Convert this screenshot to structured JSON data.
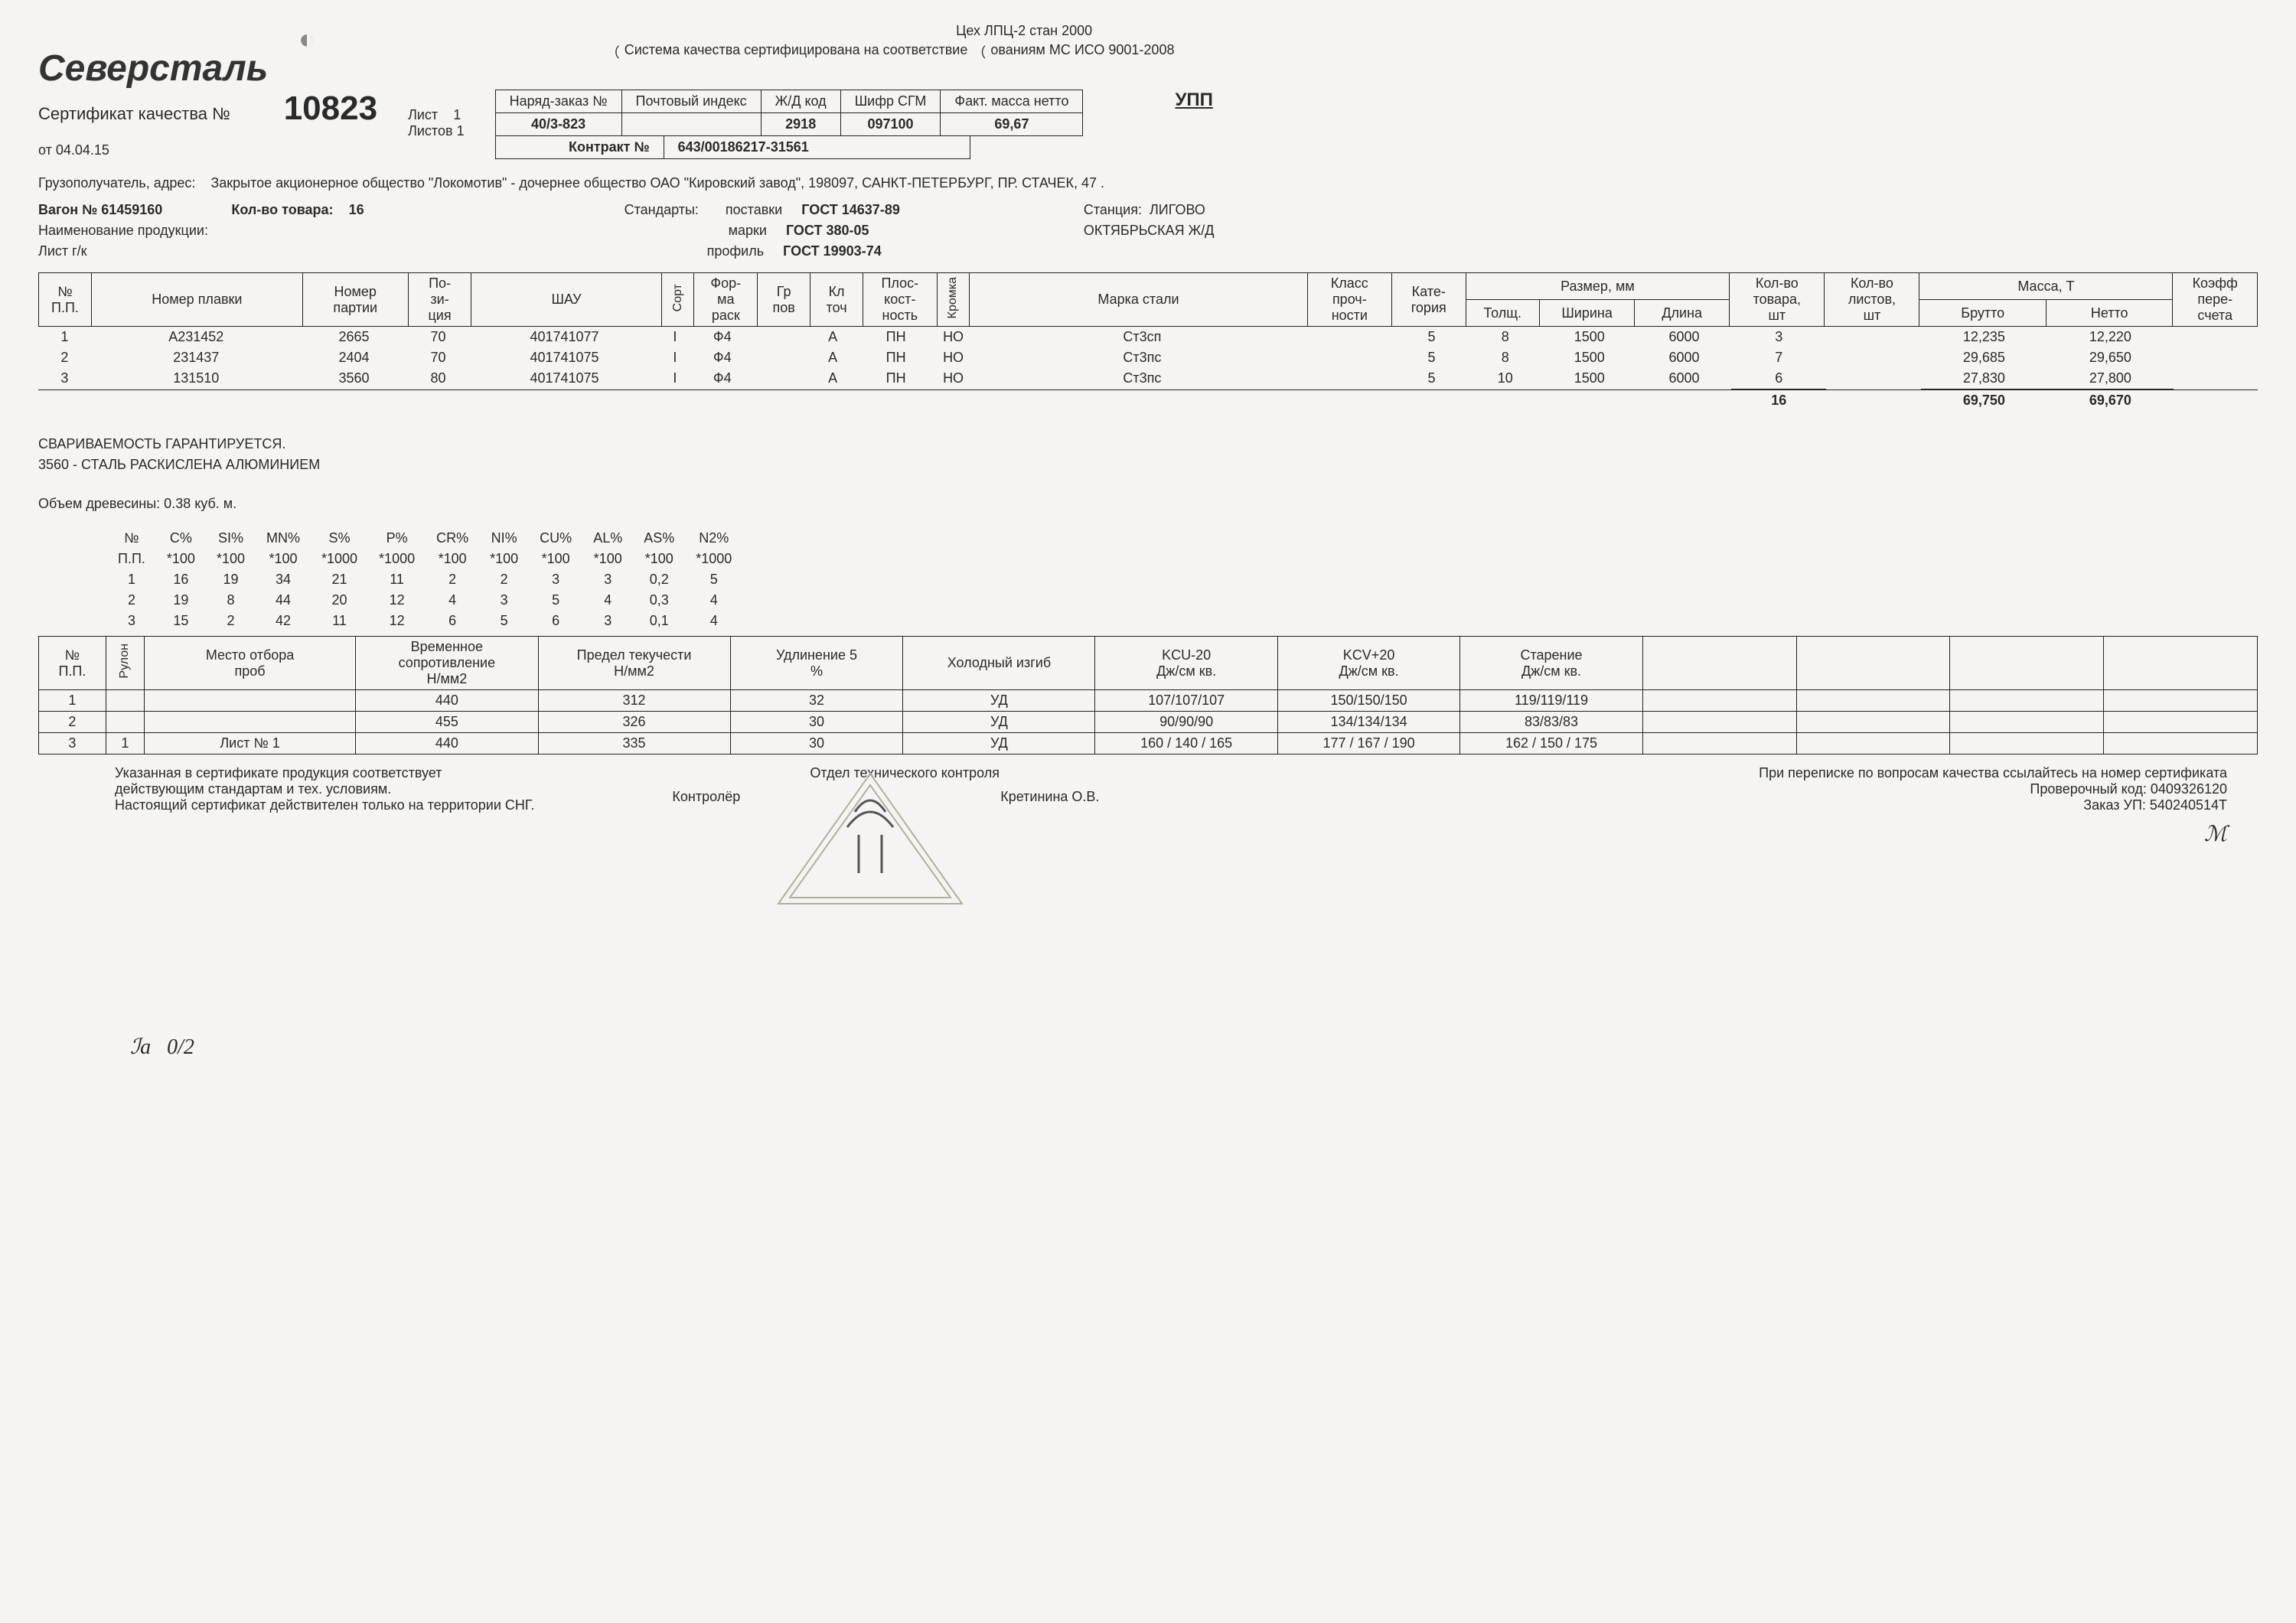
{
  "header": {
    "company": "Северсталь",
    "dept_line": "Цех ЛПЦ-2 стан 2000",
    "iso_line_a": "Система качества сертифицирована на соответствие",
    "iso_line_b": "ованиям МС ИСО 9001-2008",
    "cert_label": "Сертификат качества №",
    "cert_no": "10823",
    "sheet_label": "Лист",
    "sheet": "1",
    "sheets_label": "Листов",
    "sheets": "1",
    "date_label": "от",
    "date": "04.04.15",
    "upp": "УПП"
  },
  "kv": {
    "headers": [
      "Наряд-заказ №",
      "Почтовый индекс",
      "Ж/Д код",
      "Шифр СГМ",
      "Факт. масса нетто"
    ],
    "values": [
      "40/3-823",
      "",
      "2918",
      "097100",
      "69,67"
    ],
    "contract_label": "Контракт №",
    "contract": "643/00186217-31561"
  },
  "info": {
    "consignee_label": "Грузополучатель, адрес:",
    "consignee": "Закрытое акционерное общество \"Локомотив\" - дочернее общество ОАО \"Кировский завод\", 198097, САНКТ-ПЕТЕРБУРГ, ПР. СТАЧЕК, 47 .",
    "wagon_label": "Вагон №",
    "wagon": "61459160",
    "qty_label": "Кол-во товара:",
    "qty": "16",
    "product_label": "Наименование продукции:",
    "product": "Лист г/к",
    "standards_label": "Стандарты:",
    "std_supply_label": "поставки",
    "std_supply": "ГОСТ 14637-89",
    "std_grade_label": "марки",
    "std_grade": "ГОСТ 380-05",
    "std_profile_label": "профиль",
    "std_profile": "ГОСТ 19903-74",
    "station_label": "Станция:",
    "station": "ЛИГОВО",
    "railway": "ОКТЯБРЬСКАЯ Ж/Д"
  },
  "main_headers": {
    "pp": "№\nП.П.",
    "heat": "Номер плавки",
    "batch": "Номер\nпартии",
    "pos": "По-\nзи-\nция",
    "shau": "ШАУ",
    "sort": "Сорт",
    "form": "Фор-\nма\nраск",
    "group": "Гр\nпов",
    "class": "Кл\nточ",
    "flat": "Плос-\nкост-\nность",
    "edge": "Кромка",
    "grade": "Марка стали",
    "strength": "Класс\nпроч-\nности",
    "cat": "Кате-\nгория",
    "size": "Размер, мм",
    "thick": "Толщ.",
    "width": "Ширина",
    "length": "Длина",
    "qty_goods": "Кол-во\nтовара,\nшт",
    "qty_sheets": "Кол-во\nлистов,\nшт",
    "mass": "Масса, Т",
    "gross": "Брутто",
    "net": "Нетто",
    "coef": "Коэфф\nпере-\nсчета"
  },
  "main_rows": [
    {
      "pp": "1",
      "heat": "А231452",
      "batch": "2665",
      "pos": "70",
      "shau": "401741077",
      "sort": "I",
      "form": "Ф4",
      "group": "",
      "class": "А",
      "flat": "ПН",
      "edge": "НО",
      "grade": "Ст3сп",
      "strength": "",
      "cat": "5",
      "thick": "8",
      "width": "1500",
      "length": "6000",
      "qty_goods": "3",
      "qty_sheets": "",
      "gross": "12,235",
      "net": "12,220",
      "coef": ""
    },
    {
      "pp": "2",
      "heat": "231437",
      "batch": "2404",
      "pos": "70",
      "shau": "401741075",
      "sort": "I",
      "form": "Ф4",
      "group": "",
      "class": "А",
      "flat": "ПН",
      "edge": "НО",
      "grade": "Ст3пс",
      "strength": "",
      "cat": "5",
      "thick": "8",
      "width": "1500",
      "length": "6000",
      "qty_goods": "7",
      "qty_sheets": "",
      "gross": "29,685",
      "net": "29,650",
      "coef": ""
    },
    {
      "pp": "3",
      "heat": "131510",
      "batch": "3560",
      "pos": "80",
      "shau": "401741075",
      "sort": "I",
      "form": "Ф4",
      "group": "",
      "class": "А",
      "flat": "ПН",
      "edge": "НО",
      "grade": "Ст3пс",
      "strength": "",
      "cat": "5",
      "thick": "10",
      "width": "1500",
      "length": "6000",
      "qty_goods": "6",
      "qty_sheets": "",
      "gross": "27,830",
      "net": "27,800",
      "coef": ""
    }
  ],
  "main_totals": {
    "qty_goods": "16",
    "gross": "69,750",
    "net": "69,670"
  },
  "notes": {
    "line1": "СВАРИВАЕМОСТЬ ГАРАНТИРУЕТСЯ.",
    "line2": "3560 - СТАЛЬ РАСКИСЛЕНА АЛЮМИНИЕМ",
    "line3": "Объем древесины: 0.38 куб. м."
  },
  "chem": {
    "headers": [
      "№\nП.П.",
      "C%\n*100",
      "SI%\n*100",
      "MN%\n*100",
      "S%\n*1000",
      "P%\n*1000",
      "CR%\n*100",
      "NI%\n*100",
      "CU%\n*100",
      "AL%\n*100",
      "AS%\n*100",
      "N2%\n*1000"
    ],
    "rows": [
      [
        "1",
        "16",
        "19",
        "34",
        "21",
        "11",
        "2",
        "2",
        "3",
        "3",
        "0,2",
        "5"
      ],
      [
        "2",
        "19",
        "8",
        "44",
        "20",
        "12",
        "4",
        "3",
        "5",
        "4",
        "0,3",
        "4"
      ],
      [
        "3",
        "15",
        "2",
        "42",
        "11",
        "12",
        "6",
        "5",
        "6",
        "3",
        "0,1",
        "4"
      ]
    ]
  },
  "mech": {
    "headers": {
      "pp": "№\nП.П.",
      "roll": "Рулон",
      "sample": "Место отбора\nпроб",
      "tensile": "Временное\nсопротивление\nН/мм2",
      "yield": "Предел текучести\nН/мм2",
      "elong": "Удлинение 5\n%",
      "cold": "Холодный изгиб",
      "kcu": "KCU-20\nДж/см кв.",
      "kcv": "KCV+20\nДж/см кв.",
      "aging": "Старение\nДж/см кв."
    },
    "rows": [
      {
        "pp": "1",
        "roll": "",
        "sample": "",
        "tensile": "440",
        "yield": "312",
        "elong": "32",
        "cold": "УД",
        "kcu": "107/107/107",
        "kcv": "150/150/150",
        "aging": "119/119/119"
      },
      {
        "pp": "2",
        "roll": "",
        "sample": "",
        "tensile": "455",
        "yield": "326",
        "elong": "30",
        "cold": "УД",
        "kcu": "90/90/90",
        "kcv": "134/134/134",
        "aging": "83/83/83"
      },
      {
        "pp": "3",
        "roll": "1",
        "sample": "Лист № 1",
        "tensile": "440",
        "yield": "335",
        "elong": "30",
        "cold": "УД",
        "kcu": "160 / 140 / 165",
        "kcv": "177 / 167 / 190",
        "aging": "162 / 150 / 175"
      }
    ]
  },
  "footer": {
    "conformity1": "Указанная в сертификате продукция соответствует",
    "conformity2": "действующим стандартам и тех. условиям.",
    "conformity3": "Настоящий сертификат действителен только на территории СНГ.",
    "dept": "Отдел технического контроля",
    "controller_label": "Контролёр",
    "controller_name": "Кретинина О.В.",
    "contact": "При переписке по вопросам качества ссылайтесь на номер сертификата",
    "verify_label": "Проверочный код:",
    "verify": "0409326120",
    "order_label": "Заказ УП:",
    "order": "540240514Т"
  }
}
